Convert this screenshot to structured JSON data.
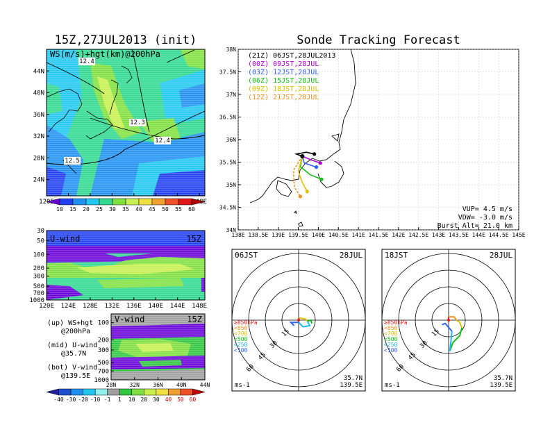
{
  "chart_data": [
    {
      "type": "heatmap",
      "title": "15Z,27JUL2013 (init)",
      "subtitle": "WS(m/s)+hgt(km)@200hPa",
      "x_ticks": [
        "120E",
        "124E",
        "128E",
        "132E",
        "136E",
        "140E",
        "144E",
        "148E"
      ],
      "y_ticks": [
        "24N",
        "28N",
        "32N",
        "36N",
        "40N",
        "44N"
      ],
      "xlim": [
        120,
        149
      ],
      "ylim": [
        21,
        48
      ],
      "contour_labels": [
        "12.4",
        "12.3",
        "12.4",
        "12.5"
      ],
      "colorbar": [
        "10",
        "15",
        "20",
        "25",
        "30",
        "35",
        "40",
        "45",
        "50",
        "55",
        "60"
      ],
      "colors": [
        "#6a00d8",
        "#2040f0",
        "#2090f0",
        "#20c8f0",
        "#30d890",
        "#80e040",
        "#c8f050",
        "#f0e040",
        "#f0a030",
        "#f05028",
        "#e01818",
        "#b00000"
      ]
    },
    {
      "type": "heatmap",
      "title": "U-wind",
      "time": "15Z",
      "x_ticks": [
        "120E",
        "124E",
        "128E",
        "132E",
        "136E",
        "140E",
        "144E",
        "148E"
      ],
      "y_ticks": [
        "30",
        "50",
        "100",
        "200",
        "300",
        "500",
        "700",
        "1000"
      ]
    },
    {
      "type": "heatmap",
      "title": "V-wind",
      "time": "15Z",
      "x_ticks": [
        "28N",
        "32N",
        "36N",
        "40N",
        "44N"
      ],
      "y_ticks": [
        "100",
        "200",
        "300",
        "500",
        "700",
        "1000"
      ],
      "colorbar": [
        "-40",
        "-30",
        "-20",
        "-10",
        "-1",
        "1",
        "10",
        "20",
        "30",
        "40",
        "50",
        "60"
      ],
      "colors": [
        "#2020a0",
        "#2050d0",
        "#2090f0",
        "#20c8f0",
        "#90f0f0",
        "#a0a0a0",
        "#30c840",
        "#80e040",
        "#c8f050",
        "#f0e040",
        "#f0a030",
        "#f05028",
        "#c00000"
      ]
    },
    {
      "type": "line",
      "title": "Sonde Tracking Forecast",
      "x_ticks": [
        "138E",
        "138.5E",
        "139E",
        "139.5E",
        "140E",
        "140.5E",
        "141E",
        "141.5E",
        "142E",
        "142.5E",
        "143E",
        "143.5E",
        "144E",
        "144.5E",
        "145E"
      ],
      "y_ticks": [
        "34N",
        "34.5N",
        "35N",
        "35.5N",
        "36N",
        "36.5N",
        "37N",
        "37.5N",
        "38N"
      ],
      "xlim": [
        138,
        145
      ],
      "ylim": [
        34,
        38
      ],
      "series": [
        {
          "name": "(21Z) 06JST,28JUL2013",
          "color": "#000000",
          "lon": [
            139.6,
            139.45,
            139.7,
            139.9
          ],
          "lat": [
            35.63,
            35.68,
            35.72,
            35.68
          ]
        },
        {
          "name": "(00Z) 09JST,28JUL",
          "color": "#b000d0",
          "lon": [
            139.6,
            139.85,
            140.05
          ],
          "lat": [
            35.63,
            35.54,
            35.48
          ]
        },
        {
          "name": "(03Z) 12JST,28JUL",
          "color": "#3060ff",
          "lon": [
            139.6,
            139.65,
            139.95
          ],
          "lat": [
            35.63,
            35.48,
            35.39
          ]
        },
        {
          "name": "(06Z) 15JST,28JUL",
          "color": "#10c010",
          "lon": [
            139.6,
            139.55,
            139.8,
            140.08
          ],
          "lat": [
            35.63,
            35.4,
            35.22,
            35.12
          ]
        },
        {
          "name": "(09Z) 18JST,28JUL",
          "color": "#e0c000",
          "lon": [
            139.6,
            139.5,
            139.6,
            139.72
          ],
          "lat": [
            35.63,
            35.3,
            35.05,
            34.85
          ]
        },
        {
          "name": "(12Z) 21JST,28JUL",
          "color": "#f09020",
          "lon": [
            139.6,
            139.38,
            139.4,
            139.55
          ],
          "lat": [
            35.63,
            35.32,
            34.95,
            34.74
          ]
        }
      ],
      "vup": "VUP= 4.5 m/s",
      "vdw": "VDW= -3.0 m/s",
      "burst": "Burst Alt= 21.0 km"
    },
    {
      "type": "hodograph",
      "title": "06JST",
      "date": "28JUL",
      "ring_labels": [
        "15",
        "30",
        "45",
        "60"
      ],
      "units": "ms-1",
      "location": [
        "35.7N",
        "139.5E"
      ],
      "legend": [
        "≥850hPa",
        "<850",
        "<700",
        "<500",
        "<250",
        "<100"
      ],
      "legend_colors": [
        "#e01818",
        "#f09020",
        "#e0c000",
        "#10c010",
        "#20b8f0",
        "#3060ff"
      ],
      "trace": [
        {
          "color": "#e01818",
          "u": [
            0,
            0.5
          ],
          "v": [
            0,
            2
          ]
        },
        {
          "color": "#e0c000",
          "u": [
            0.5,
            6,
            8
          ],
          "v": [
            2,
            1,
            -1
          ]
        },
        {
          "color": "#10c010",
          "u": [
            8,
            11,
            12
          ],
          "v": [
            -1,
            0,
            -3
          ]
        },
        {
          "color": "#20b8f0",
          "u": [
            8,
            10,
            4,
            0
          ],
          "v": [
            -1,
            -5,
            -6,
            -2
          ]
        },
        {
          "color": "#3060ff",
          "u": [
            0,
            -7,
            -4
          ],
          "v": [
            -2,
            -2,
            -5
          ]
        }
      ]
    },
    {
      "type": "hodograph",
      "title": "18JST",
      "date": "28JUL",
      "ring_labels": [
        "15",
        "30",
        "45",
        "60"
      ],
      "units": "ms-1",
      "location": [
        "35.7N",
        "139.5E"
      ],
      "legend": [
        "≥850hPa",
        "<850",
        "<700",
        "<500",
        "<250",
        "<100"
      ],
      "legend_colors": [
        "#e01818",
        "#f09020",
        "#e0c000",
        "#10c010",
        "#20b8f0",
        "#3060ff"
      ],
      "trace": [
        {
          "color": "#e01818",
          "u": [
            0,
            0
          ],
          "v": [
            0,
            3
          ]
        },
        {
          "color": "#f09020",
          "u": [
            0,
            5,
            7
          ],
          "v": [
            3,
            3,
            0
          ]
        },
        {
          "color": "#e0c000",
          "u": [
            7,
            10,
            12
          ],
          "v": [
            0,
            -2,
            -7
          ]
        },
        {
          "color": "#10c010",
          "u": [
            12,
            10,
            4,
            1
          ],
          "v": [
            -7,
            -14,
            -20,
            -28
          ]
        },
        {
          "color": "#20b8f0",
          "u": [
            1,
            2,
            3
          ],
          "v": [
            -28,
            -20,
            -10
          ]
        },
        {
          "color": "#3060ff",
          "u": [
            3,
            -3,
            -6
          ],
          "v": [
            -10,
            -3,
            -4
          ]
        }
      ]
    }
  ],
  "labels": {
    "upper": "(up) WS+hgt",
    "upper2": "@200hPa",
    "mid": "(mid) U-wind",
    "mid2": "@35.7N",
    "bot": "(bot) V-wind",
    "bot2": "@139.5E"
  }
}
